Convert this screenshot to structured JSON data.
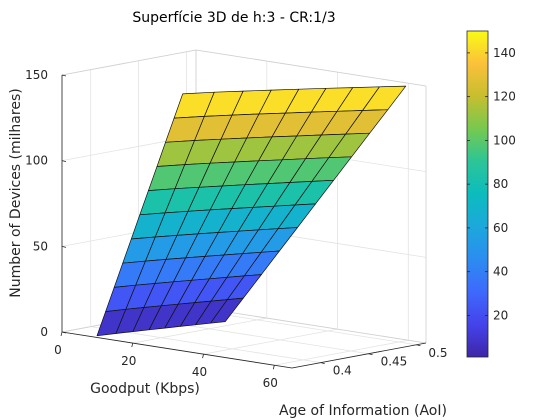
{
  "chart_data": {
    "type": "surface",
    "title": "Superfície 3D de h:3 - CR:1/3",
    "xlabel": "Goodput (Kbps)",
    "ylabel": "Age of Information (AoI)",
    "zlabel": "Number of Devices (milhares)",
    "xlim": [
      0,
      65
    ],
    "ylim": [
      0.37,
      0.51
    ],
    "zlim": [
      0,
      150
    ],
    "x_ticks": [
      "0",
      "20",
      "40",
      "60"
    ],
    "y_ticks": [
      "0.4",
      "0.45",
      "0.5"
    ],
    "z_ticks": [
      "0",
      "50",
      "100",
      "150"
    ],
    "colorbar": {
      "colormap": "parula",
      "range": [
        1,
        150
      ],
      "ticks": [
        "20",
        "40",
        "60",
        "80",
        "100",
        "120",
        "140"
      ]
    },
    "grid": true,
    "grid_size": {
      "rows": 10,
      "cols": 8
    },
    "surface": {
      "n_min": 1,
      "n_max": 150,
      "aoi_min": 0.37,
      "aoi_max": 0.5,
      "goodput_at_n_min": 18,
      "goodput_at_n_max": 62
    }
  }
}
